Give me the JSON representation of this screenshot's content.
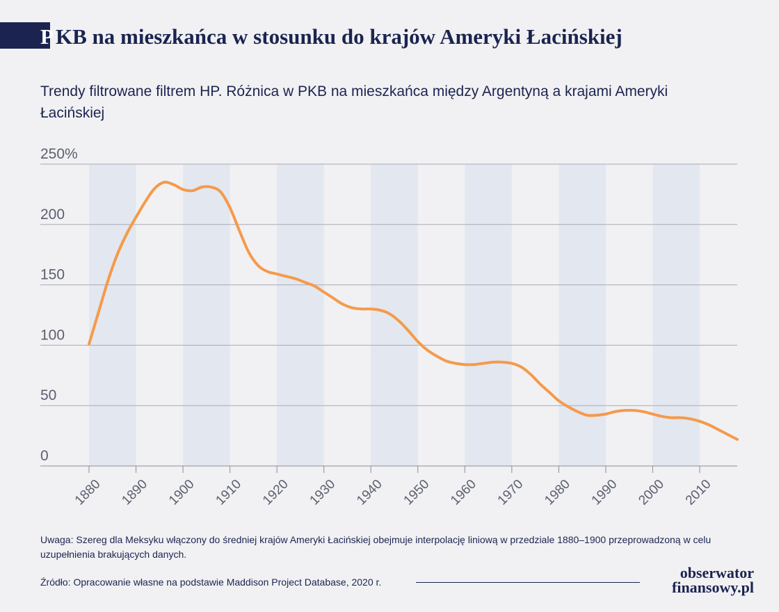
{
  "header": {
    "title_initial": "P",
    "title_rest": "KB na mieszkańca w stosunku do krajów Ameryki Łacińskiej",
    "subtitle": "Trendy filtrowane filtrem HP. Różnica w PKB na mieszkańca między Argentyną a krajami Ameryki Łacińskiej"
  },
  "chart_data": {
    "type": "line",
    "title": "PKB na mieszkańca w stosunku do krajów Ameryki Łacińskiej",
    "subtitle": "Trendy filtrowane filtrem HP. Różnica w PKB na mieszkańca między Argentyną a krajami Ameryki Łacińskiej",
    "xlabel": "",
    "ylabel": "",
    "xlim": [
      1880,
      2018
    ],
    "ylim": [
      0,
      250
    ],
    "y_ticks": [
      {
        "value": 0,
        "label": "0"
      },
      {
        "value": 50,
        "label": "50"
      },
      {
        "value": 100,
        "label": "100"
      },
      {
        "value": 150,
        "label": "150"
      },
      {
        "value": 200,
        "label": "200"
      },
      {
        "value": 250,
        "label": "250%"
      }
    ],
    "x_ticks": [
      1880,
      1890,
      1900,
      1910,
      1920,
      1930,
      1940,
      1950,
      1960,
      1970,
      1980,
      1990,
      2000,
      2010
    ],
    "shaded_bands": [
      [
        1880,
        1890
      ],
      [
        1900,
        1910
      ],
      [
        1920,
        1930
      ],
      [
        1940,
        1950
      ],
      [
        1960,
        1970
      ],
      [
        1980,
        1990
      ],
      [
        2000,
        2010
      ]
    ],
    "grid": true,
    "color": "#f59a4a",
    "band_color": "#e3e7ef",
    "series": [
      {
        "x": [
          1880,
          1882,
          1884,
          1886,
          1888,
          1890,
          1892,
          1894,
          1896,
          1898,
          1900,
          1902,
          1904,
          1906,
          1908,
          1910,
          1912,
          1914,
          1916,
          1918,
          1920,
          1922,
          1924,
          1926,
          1928,
          1930,
          1932,
          1934,
          1936,
          1938,
          1940,
          1942,
          1944,
          1946,
          1948,
          1950,
          1952,
          1954,
          1956,
          1958,
          1960,
          1962,
          1964,
          1966,
          1968,
          1970,
          1972,
          1974,
          1976,
          1978,
          1980,
          1982,
          1984,
          1986,
          1988,
          1990,
          1992,
          1994,
          1996,
          1998,
          2000,
          2002,
          2004,
          2006,
          2008,
          2010,
          2012,
          2014,
          2016,
          2018
        ],
        "values": [
          101,
          127,
          153,
          175,
          192,
          206,
          219,
          230,
          235,
          233,
          229,
          228,
          231,
          231,
          227,
          214,
          195,
          177,
          166,
          161,
          159,
          157,
          155,
          152,
          149,
          144,
          139,
          134,
          131,
          130,
          130,
          129,
          126,
          120,
          112,
          103,
          96,
          91,
          87,
          85,
          84,
          84,
          85,
          86,
          86,
          85,
          82,
          76,
          68,
          61,
          54,
          49,
          45,
          42,
          42,
          43,
          45,
          46,
          46,
          45,
          43,
          41,
          40,
          40,
          39,
          37,
          34,
          30,
          26,
          22
        ]
      }
    ]
  },
  "footer": {
    "note": "Uwaga: Szereg dla Meksyku włączony do średniej krajów Ameryki Łacińskiej obejmuje interpolację liniową w przedziale 1880–1900 przeprowadzoną w celu uzupełnienia brakujących danych.",
    "source": "Źródło: Opracowanie własne na podstawie Maddison Project Database, 2020 r.",
    "logo_line1": "obserwator",
    "logo_line2": "finansowy.pl"
  }
}
